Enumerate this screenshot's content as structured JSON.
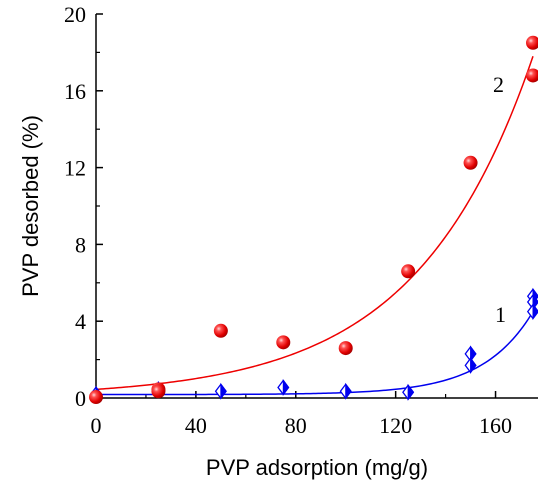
{
  "chart_data": {
    "type": "scatter",
    "title": "",
    "xlabel": "PVP adsorption  (mg/g)",
    "ylabel": "PVP  desorbed  (%)",
    "xlim": [
      0,
      175
    ],
    "ylim": [
      0,
      20
    ],
    "xticks": [
      0,
      40,
      80,
      120,
      160
    ],
    "xtick_labels": [
      "0",
      "40",
      "80",
      "120",
      "160"
    ],
    "yticks": [
      0,
      4,
      8,
      12,
      16,
      20
    ],
    "ytick_labels": [
      "0",
      "4",
      "8",
      "12",
      "16",
      "20"
    ],
    "grid": false,
    "legend": "none",
    "series": [
      {
        "label": "1",
        "color": "#0000ee",
        "marker": "half-filled-diamond",
        "points": [
          [
            0,
            0.2
          ],
          [
            25,
            0.45
          ],
          [
            50,
            0.35
          ],
          [
            75,
            0.55
          ],
          [
            100,
            0.35
          ],
          [
            125,
            0.3
          ],
          [
            150,
            2.3
          ],
          [
            150,
            1.7
          ],
          [
            175,
            5.3
          ],
          [
            175,
            5.0
          ],
          [
            175,
            4.5
          ]
        ],
        "fit": {
          "x0": 0,
          "x1": 175,
          "a": 0.05,
          "y0": 0.18,
          "x_end": 175,
          "y_end": 4.5
        }
      },
      {
        "label": "2",
        "color": "#ee0000",
        "marker": "sphere",
        "points": [
          [
            0,
            0.05
          ],
          [
            25,
            0.45
          ],
          [
            25,
            0.35
          ],
          [
            50,
            3.5
          ],
          [
            75,
            2.9
          ],
          [
            100,
            2.6
          ],
          [
            125,
            6.6
          ],
          [
            150,
            12.25
          ],
          [
            175,
            18.5
          ],
          [
            175,
            16.8
          ]
        ],
        "fit": {
          "x0": 0,
          "x1": 175,
          "a": 0.0215,
          "y0": 0.45,
          "x_end": 175,
          "y_end": 17.8
        }
      }
    ]
  }
}
